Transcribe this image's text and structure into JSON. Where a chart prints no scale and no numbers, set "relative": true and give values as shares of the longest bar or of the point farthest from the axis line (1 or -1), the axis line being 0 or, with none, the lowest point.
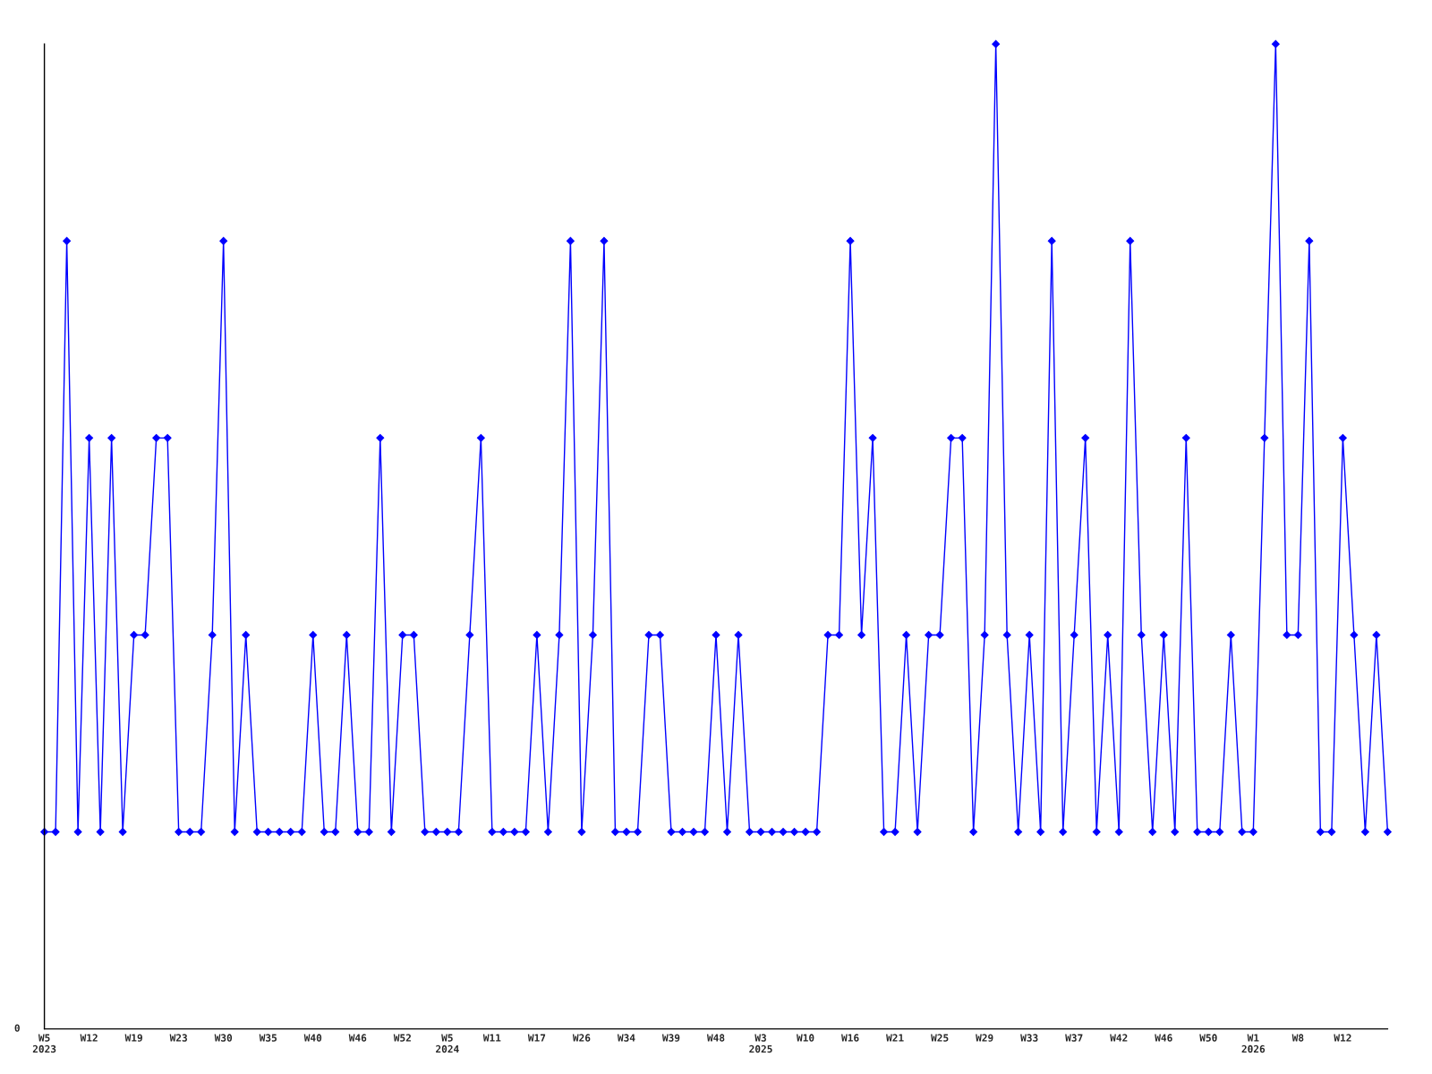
{
  "chart_data": {
    "type": "line",
    "relative": true,
    "categories": [
      "W5\n2023",
      null,
      null,
      null,
      "W12",
      null,
      null,
      null,
      "W19",
      null,
      null,
      null,
      "W23",
      null,
      null,
      null,
      "W30",
      null,
      null,
      null,
      "W35",
      null,
      null,
      null,
      "W40",
      null,
      null,
      null,
      "W46",
      null,
      null,
      null,
      "W52",
      null,
      null,
      null,
      "W5\n2024",
      null,
      null,
      null,
      "W11",
      null,
      null,
      null,
      "W17",
      null,
      null,
      null,
      "W26",
      null,
      null,
      null,
      "W34",
      null,
      null,
      null,
      "W39",
      null,
      null,
      null,
      "W48",
      null,
      null,
      null,
      "W3\n2025",
      null,
      null,
      null,
      "W10",
      null,
      null,
      null,
      "W16",
      null,
      null,
      null,
      "W21",
      null,
      null,
      null,
      "W25",
      null,
      null,
      null,
      "W29",
      null,
      null,
      null,
      "W33",
      null,
      null,
      null,
      "W37",
      null,
      null,
      null,
      "W42",
      null,
      null,
      null,
      "W46",
      null,
      null,
      null,
      "W50",
      null,
      null,
      null,
      "W1\n2026",
      null,
      null,
      null,
      "W8",
      null,
      null,
      null,
      "W12",
      null,
      null,
      null,
      null
    ],
    "series": [
      {
        "color": "#0000ff",
        "values": [
          0.2,
          0.2,
          0.8,
          0.2,
          0.6,
          0.2,
          0.6,
          0.2,
          0.4,
          0.4,
          0.6,
          0.6,
          0.2,
          0.2,
          0.2,
          0.4,
          0.8,
          0.2,
          0.4,
          0.2,
          0.2,
          0.2,
          0.2,
          0.2,
          0.4,
          0.2,
          0.2,
          0.4,
          0.2,
          0.2,
          0.6,
          0.2,
          0.4,
          0.4,
          0.2,
          0.2,
          0.2,
          0.2,
          0.4,
          0.6,
          0.2,
          0.2,
          0.2,
          0.2,
          0.4,
          0.2,
          0.4,
          0.8,
          0.2,
          0.4,
          0.8,
          0.2,
          0.2,
          0.2,
          0.4,
          0.4,
          0.2,
          0.2,
          0.2,
          0.2,
          0.4,
          0.2,
          0.4,
          0.2,
          0.2,
          0.2,
          0.2,
          0.2,
          0.2,
          0.2,
          0.4,
          0.4,
          0.8,
          0.4,
          0.6,
          0.2,
          0.2,
          0.4,
          0.2,
          0.4,
          0.4,
          0.6,
          0.6,
          0.2,
          0.4,
          1,
          0.4,
          0.2,
          0.4,
          0.2,
          0.8,
          0.2,
          0.4,
          0.6,
          0.2,
          0.4,
          0.2,
          0.8,
          0.4,
          0.2,
          0.4,
          0.2,
          0.6,
          0.2,
          0.2,
          0.2,
          0.4,
          0.2,
          0.2,
          0.6,
          1,
          0.4,
          0.4,
          0.8,
          0.2,
          0.2,
          0.6,
          0.4,
          0.2,
          0.4,
          0.2
        ]
      }
    ],
    "marker": "diamond",
    "line_style": "solid",
    "grid": false,
    "legend": false,
    "annotations": [
      "0"
    ]
  }
}
